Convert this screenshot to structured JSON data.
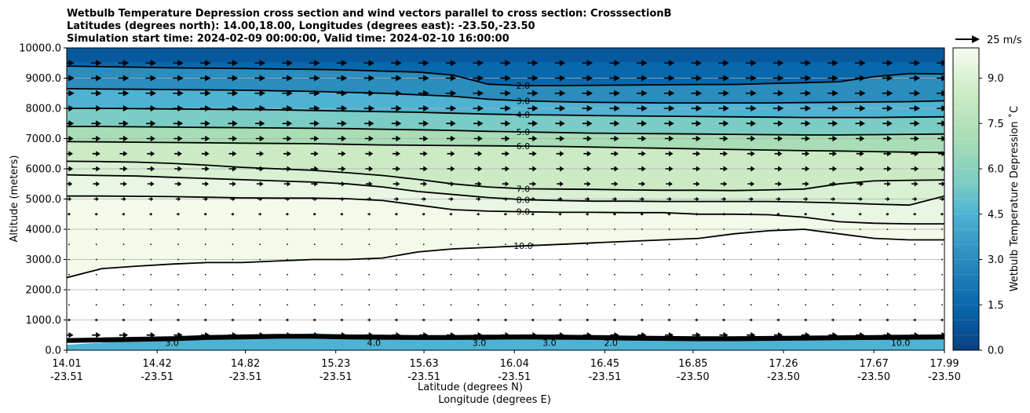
{
  "chart_data": {
    "type": "contour",
    "title_lines": [
      "Wetbulb Temperature Depression cross section and wind vectors parallel to cross section: CrosssectionB",
      "Latitudes (degrees north): 14.00,18.00, Longitudes (degrees east): -23.50,-23.50",
      "Simulation start time: 2024-02-09 00:00:00, Valid time: 2024-02-10 16:00:00"
    ],
    "xlabel_lat": "Latitude (degrees N)",
    "xlabel_lon": "Longitude (degrees E)",
    "ylabel": "Altitude (meters)",
    "ylim": [
      0,
      10000
    ],
    "y_ticks": [
      "0.0",
      "1000.0",
      "2000.0",
      "3000.0",
      "4000.0",
      "5000.0",
      "6000.0",
      "7000.0",
      "8000.0",
      "9000.0",
      "10000.0"
    ],
    "y_tick_values": [
      0,
      1000,
      2000,
      3000,
      4000,
      5000,
      6000,
      7000,
      8000,
      9000,
      10000
    ],
    "xlim": [
      14.01,
      17.99
    ],
    "x_ticks": [
      {
        "lat": "14.01",
        "lon": "-23.51",
        "value": 14.01
      },
      {
        "lat": "14.42",
        "lon": "-23.51",
        "value": 14.42
      },
      {
        "lat": "14.82",
        "lon": "-23.51",
        "value": 14.82
      },
      {
        "lat": "15.23",
        "lon": "-23.51",
        "value": 15.23
      },
      {
        "lat": "15.63",
        "lon": "-23.51",
        "value": 15.63
      },
      {
        "lat": "16.04",
        "lon": "-23.51",
        "value": 16.04
      },
      {
        "lat": "16.45",
        "lon": "-23.51",
        "value": 16.45
      },
      {
        "lat": "16.85",
        "lon": "-23.50",
        "value": 16.85
      },
      {
        "lat": "17.26",
        "lon": "-23.50",
        "value": 17.26
      },
      {
        "lat": "17.67",
        "lon": "-23.50",
        "value": 17.67
      },
      {
        "lat": "17.99",
        "lon": "-23.50",
        "value": 17.99
      }
    ],
    "colorbar": {
      "label": "Wetbulb Temperature Depression ˚C",
      "min": 0,
      "max": 10,
      "ticks": [
        "0.0",
        "1.5",
        "3.0",
        "4.5",
        "6.0",
        "7.5",
        "9.0"
      ],
      "tick_values": [
        0,
        1.5,
        3,
        4.5,
        6,
        7.5,
        9
      ],
      "colormap": "GnBu_r",
      "color_low": "#084081",
      "color_mid": "#7bccc4",
      "color_high": "#f7fcf0"
    },
    "wind_key": {
      "label": "25 m/s"
    },
    "grid": true,
    "contour_levels": [
      {
        "level": 2.0,
        "label": "2.0",
        "altitudes": [
          9400,
          9380,
          9360,
          9340,
          9330,
          9320,
          9300,
          9290,
          9270,
          9230,
          9200,
          9100,
          8800,
          8750,
          8750,
          8760,
          8770,
          8780,
          8790,
          8790,
          8820,
          8850,
          8880,
          9050,
          9150,
          9140
        ]
      },
      {
        "level": 3.0,
        "label": "3.0",
        "altitudes": [
          8650,
          8640,
          8630,
          8620,
          8610,
          8600,
          8580,
          8560,
          8530,
          8500,
          8450,
          8400,
          8300,
          8250,
          8220,
          8200,
          8190,
          8180,
          8180,
          8180,
          8180,
          8190,
          8200,
          8210,
          8220,
          8250
        ]
      },
      {
        "level": 4.0,
        "label": "4.0",
        "altitudes": [
          8000,
          8000,
          7990,
          7980,
          7970,
          7960,
          7950,
          7930,
          7910,
          7890,
          7870,
          7840,
          7810,
          7790,
          7780,
          7760,
          7750,
          7740,
          7730,
          7720,
          7710,
          7700,
          7700,
          7700,
          7710,
          7720
        ]
      },
      {
        "level": 5.0,
        "label": "5.0",
        "altitudes": [
          7400,
          7400,
          7390,
          7380,
          7370,
          7360,
          7350,
          7340,
          7330,
          7310,
          7290,
          7270,
          7240,
          7220,
          7200,
          7180,
          7170,
          7160,
          7150,
          7140,
          7130,
          7120,
          7120,
          7130,
          7140,
          7150
        ]
      },
      {
        "level": 6.0,
        "label": "6.0",
        "altitudes": [
          6900,
          6890,
          6880,
          6870,
          6860,
          6850,
          6840,
          6830,
          6810,
          6790,
          6780,
          6770,
          6760,
          6750,
          6740,
          6720,
          6700,
          6680,
          6660,
          6640,
          6620,
          6600,
          6590,
          6570,
          6550,
          6540
        ]
      },
      {
        "level": 7.0,
        "label": "7.0",
        "altitudes": [
          6250,
          6240,
          6220,
          6180,
          6120,
          6050,
          6000,
          5950,
          5870,
          5780,
          5650,
          5500,
          5400,
          5340,
          5330,
          5320,
          5300,
          5290,
          5290,
          5280,
          5300,
          5330,
          5500,
          5600,
          5620,
          5630
        ]
      },
      {
        "level": 8.0,
        "label": "8.0",
        "altitudes": [
          5800,
          5780,
          5760,
          5720,
          5680,
          5640,
          5600,
          5560,
          5500,
          5400,
          5250,
          5150,
          5050,
          4980,
          4950,
          4930,
          4930,
          4920,
          4920,
          4920,
          4920,
          4900,
          4870,
          4830,
          4800,
          5100
        ]
      },
      {
        "level": 9.0,
        "label": "9.0",
        "altitudes": [
          5100,
          5100,
          5090,
          5080,
          5060,
          5040,
          5030,
          5030,
          5010,
          4950,
          4800,
          4650,
          4600,
          4580,
          4560,
          4560,
          4550,
          4550,
          4500,
          4500,
          4480,
          4400,
          4250,
          4200,
          4180,
          4180
        ]
      },
      {
        "level": 10.0,
        "label": "10.0",
        "altitudes": [
          2400,
          2700,
          2780,
          2850,
          2900,
          2900,
          2950,
          3000,
          3000,
          3050,
          3250,
          3350,
          3400,
          3450,
          3500,
          3550,
          3600,
          3650,
          3700,
          3850,
          3950,
          4000,
          3850,
          3700,
          3650,
          3650
        ]
      }
    ],
    "surface_contour_labels": [
      "3.0",
      "4.0",
      "3.0",
      "3.0",
      "2.0",
      "10.0"
    ],
    "wind_vectors": {
      "rows_altitude": [
        9500,
        9000,
        8500,
        8000,
        7500,
        7000,
        6500,
        6000,
        5500,
        5000,
        4500,
        4000,
        3500,
        3000,
        2500,
        2000,
        1500,
        1000,
        500
      ],
      "rows_speed_ms": [
        11,
        11,
        11,
        11,
        10,
        9,
        8,
        8,
        7,
        5,
        3,
        2,
        1,
        0.5,
        0.5,
        0.5,
        0.5,
        3,
        9
      ]
    }
  }
}
